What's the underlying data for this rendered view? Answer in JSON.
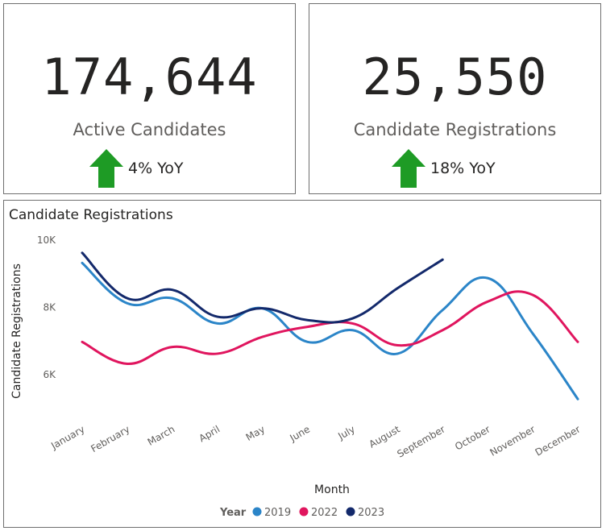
{
  "kpis": [
    {
      "value": "174,644",
      "label": "Active Candidates",
      "trend": "4% YoY",
      "trend_direction": "up",
      "arrow_color": "#1e9b25"
    },
    {
      "value": "25,550",
      "label": "Candidate Registrations",
      "trend": "18% YoY",
      "trend_direction": "up",
      "arrow_color": "#1e9b25"
    }
  ],
  "chart_data": {
    "type": "line",
    "title": "Candidate Registrations",
    "xlabel": "Month",
    "ylabel": "Candidate Registrations",
    "categories": [
      "January",
      "February",
      "March",
      "April",
      "May",
      "June",
      "July",
      "August",
      "September",
      "October",
      "November",
      "December"
    ],
    "yticks": [
      {
        "value": 6000,
        "label": "6K"
      },
      {
        "value": 8000,
        "label": "8K"
      },
      {
        "value": 10000,
        "label": "10K"
      }
    ],
    "ylim": [
      4800,
      10100
    ],
    "grid": false,
    "legend": {
      "title": "Year",
      "position": "bottom"
    },
    "series": [
      {
        "name": "2019",
        "color": "#2b85c8",
        "values": [
          9300,
          8100,
          8250,
          7500,
          7950,
          6950,
          7300,
          6600,
          7900,
          8850,
          7200,
          5250
        ]
      },
      {
        "name": "2022",
        "color": "#e0155e",
        "values": [
          6950,
          6300,
          6800,
          6600,
          7100,
          7400,
          7500,
          6850,
          7300,
          8150,
          8350,
          6950
        ]
      },
      {
        "name": "2023",
        "color": "#13296b",
        "values": [
          9600,
          8250,
          8500,
          7700,
          7950,
          7600,
          7650,
          8550,
          9400,
          null,
          null,
          null
        ]
      }
    ]
  }
}
